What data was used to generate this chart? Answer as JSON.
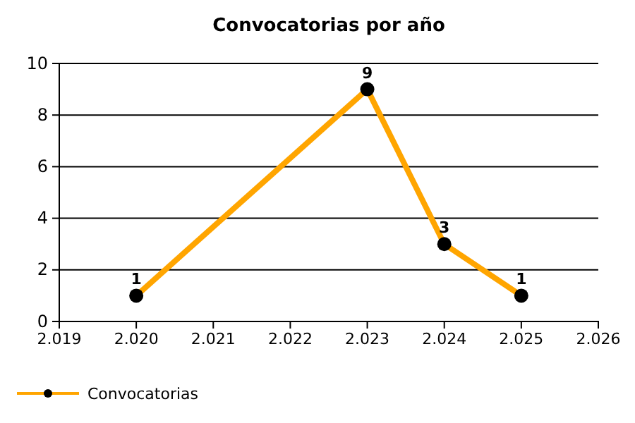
{
  "chart_data": {
    "type": "line",
    "title": "Convocatorias por año",
    "x": [
      2020,
      2023,
      2024,
      2025
    ],
    "series": [
      {
        "name": "Convocatorias",
        "color": "#ffa500",
        "values": [
          1,
          9,
          3,
          1
        ]
      }
    ],
    "xlim": [
      2019,
      2026
    ],
    "xticks": [
      {
        "value": 2019,
        "label": "2.019"
      },
      {
        "value": 2020,
        "label": "2.020"
      },
      {
        "value": 2021,
        "label": "2.021"
      },
      {
        "value": 2022,
        "label": "2.022"
      },
      {
        "value": 2023,
        "label": "2.023"
      },
      {
        "value": 2024,
        "label": "2.024"
      },
      {
        "value": 2025,
        "label": "2.025"
      },
      {
        "value": 2026,
        "label": "2.026"
      }
    ],
    "ylim": [
      0,
      10
    ],
    "yticks": [
      0,
      2,
      4,
      6,
      8,
      10
    ],
    "grid": "y",
    "legend": "bottom left",
    "marker": "circle",
    "line_style": "solid",
    "data_labels": true
  }
}
